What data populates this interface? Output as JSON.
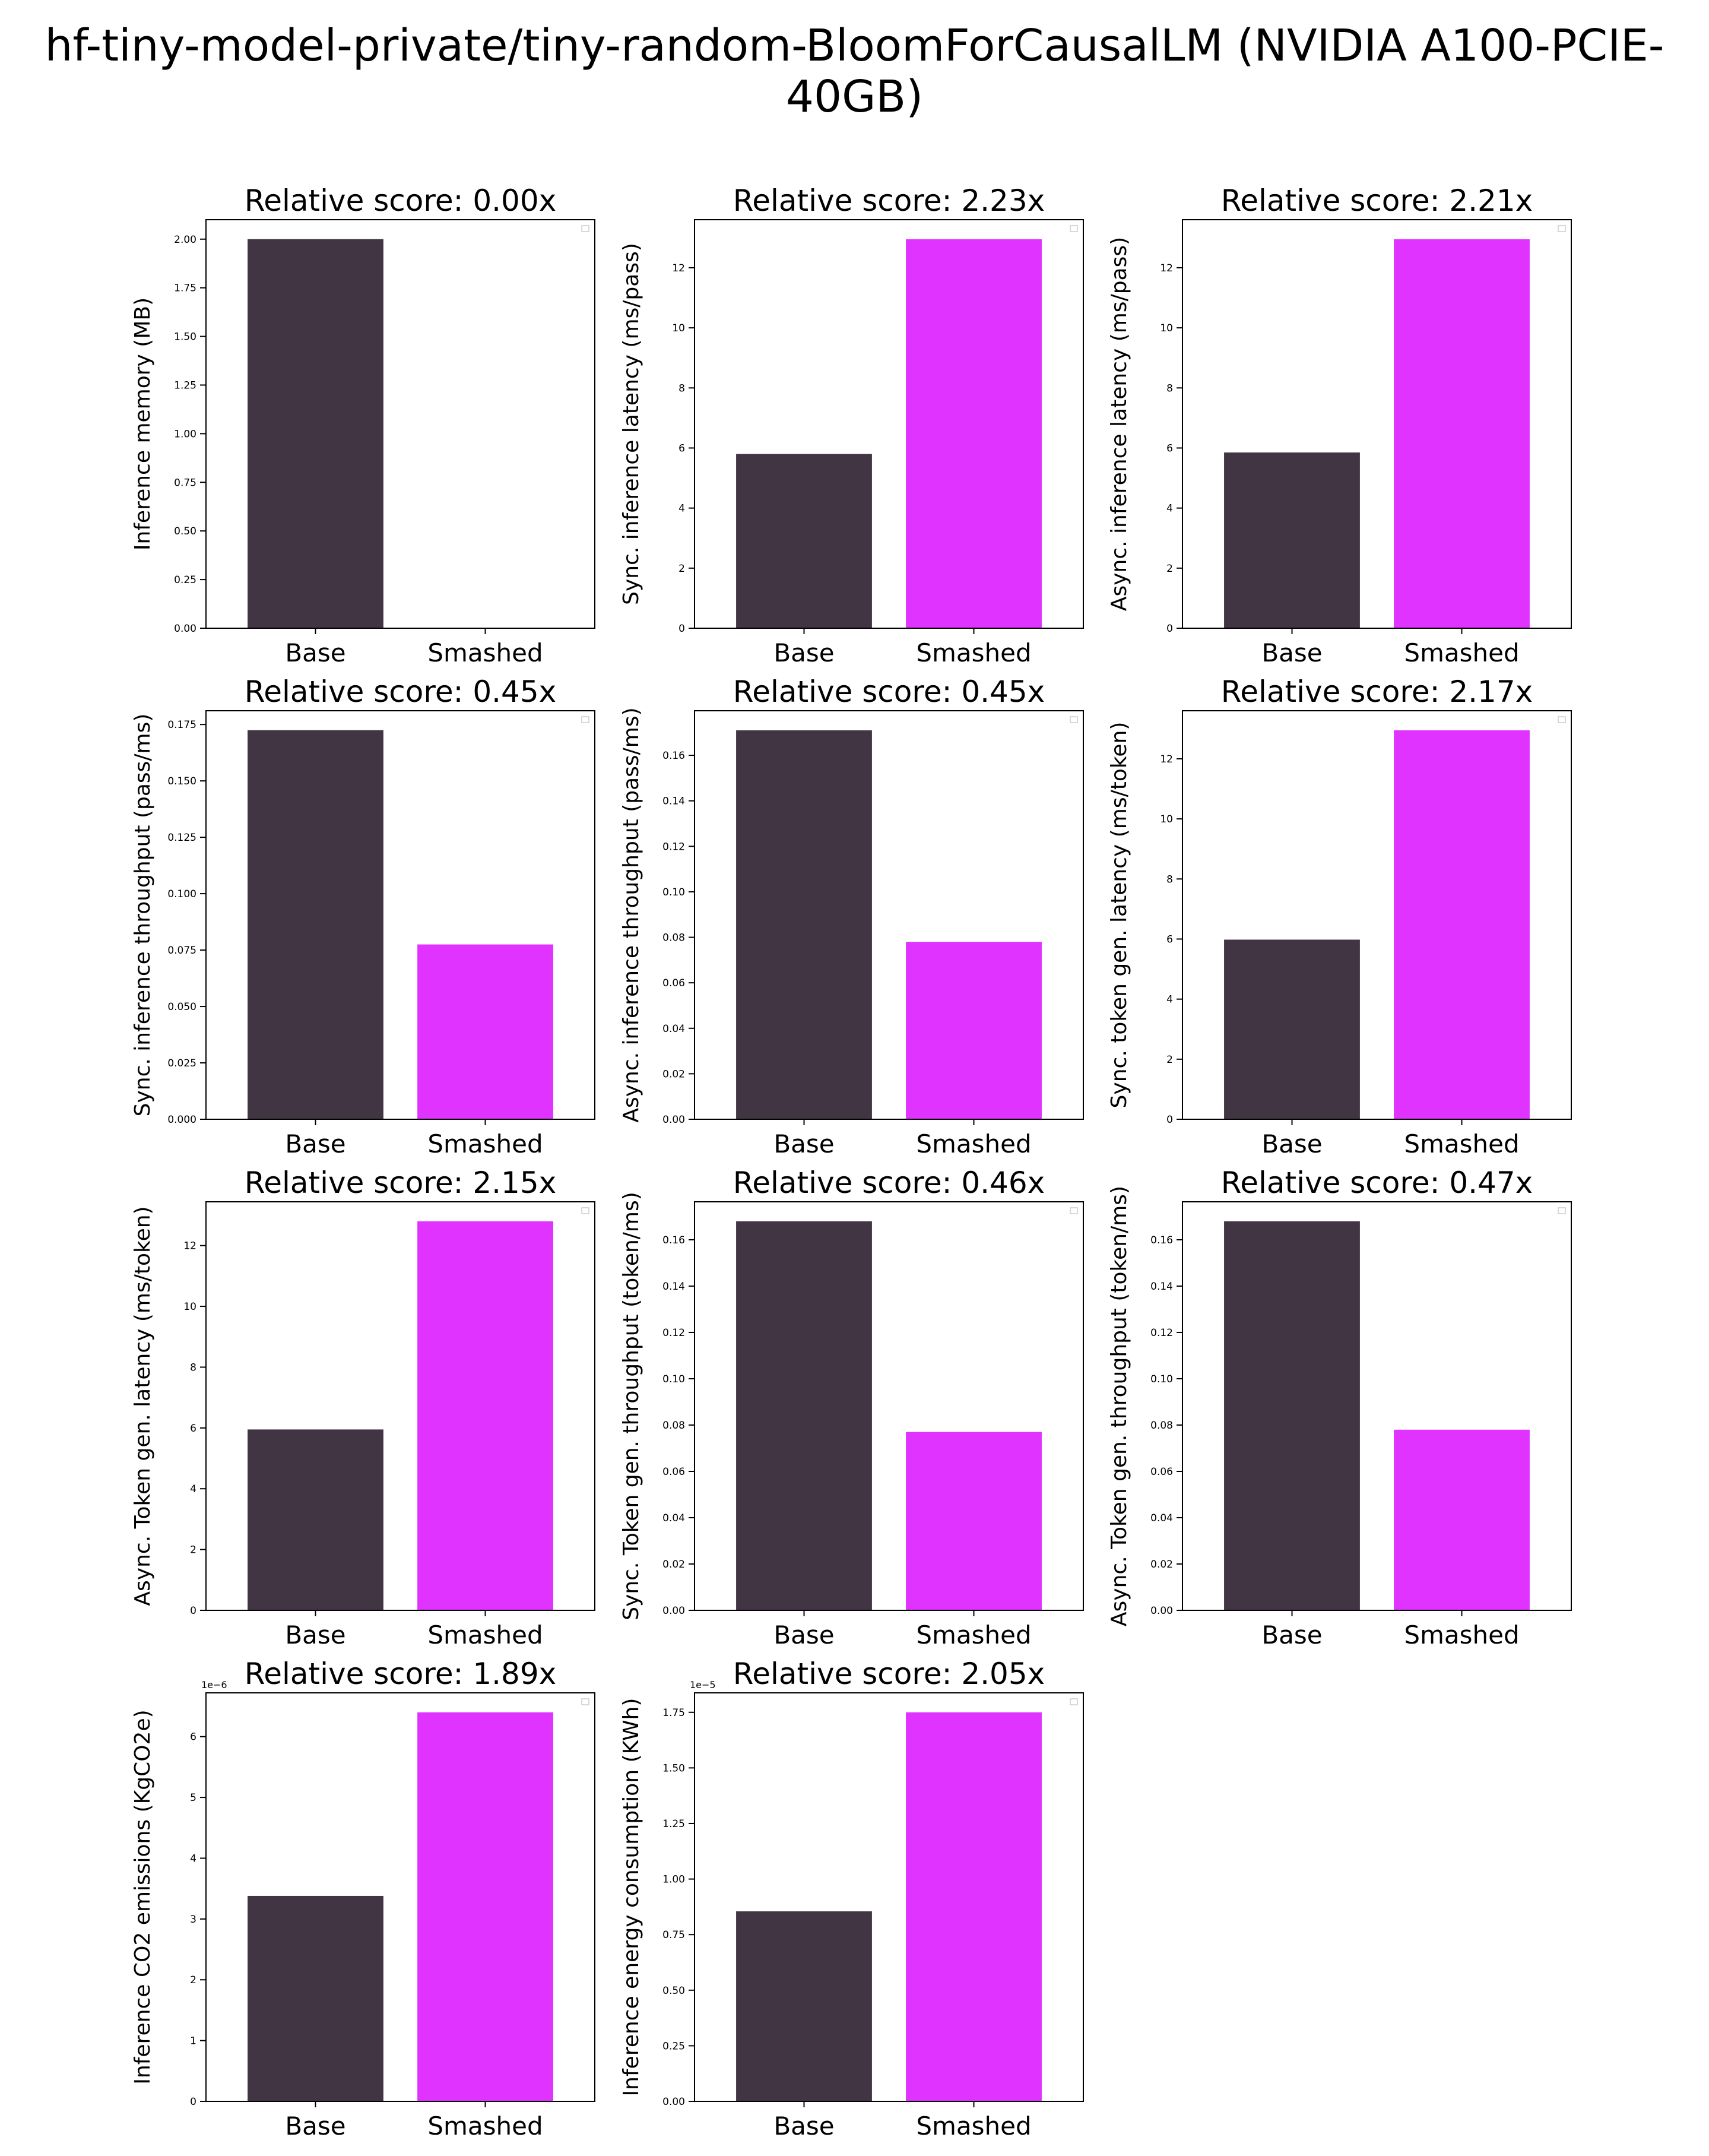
{
  "figure": {
    "suptitle": "hf-tiny-model-private/tiny-random-BloomForCausalLM (NVIDIA A100-PCIE-40GB)"
  },
  "colors": {
    "base": "#413443",
    "smashed": "#e033ff"
  },
  "chart_data": [
    {
      "type": "bar",
      "title": "Relative score: 0.00x",
      "ylabel": "Inference memory (MB)",
      "categories": [
        "Base",
        "Smashed"
      ],
      "values": [
        2.0,
        0.0
      ],
      "ylim": [
        0,
        2.1
      ],
      "yticks": [
        0,
        0.25,
        0.5,
        0.75,
        1.0,
        1.25,
        1.5,
        1.75,
        2.0
      ],
      "tick_decimals": 2,
      "offset_text": ""
    },
    {
      "type": "bar",
      "title": "Relative score: 2.23x",
      "ylabel": "Sync. inference latency (ms/pass)",
      "categories": [
        "Base",
        "Smashed"
      ],
      "values": [
        5.8,
        12.95
      ],
      "ylim": [
        0,
        13.6
      ],
      "yticks": [
        0,
        2,
        4,
        6,
        8,
        10,
        12
      ],
      "tick_decimals": 0,
      "offset_text": ""
    },
    {
      "type": "bar",
      "title": "Relative score: 2.21x",
      "ylabel": "Async. inference latency (ms/pass)",
      "categories": [
        "Base",
        "Smashed"
      ],
      "values": [
        5.85,
        12.95
      ],
      "ylim": [
        0,
        13.6
      ],
      "yticks": [
        0,
        2,
        4,
        6,
        8,
        10,
        12
      ],
      "tick_decimals": 0,
      "offset_text": ""
    },
    {
      "type": "bar",
      "title": "Relative score: 0.45x",
      "ylabel": "Sync. inference throughput (pass/ms)",
      "categories": [
        "Base",
        "Smashed"
      ],
      "values": [
        0.1725,
        0.0775
      ],
      "ylim": [
        0,
        0.1811
      ],
      "yticks": [
        0,
        0.025,
        0.05,
        0.075,
        0.1,
        0.125,
        0.15,
        0.175
      ],
      "tick_decimals": 3,
      "offset_text": ""
    },
    {
      "type": "bar",
      "title": "Relative score: 0.45x",
      "ylabel": "Async. inference throughput (pass/ms)",
      "categories": [
        "Base",
        "Smashed"
      ],
      "values": [
        0.171,
        0.078
      ],
      "ylim": [
        0,
        0.1796
      ],
      "yticks": [
        0,
        0.02,
        0.04,
        0.06,
        0.08,
        0.1,
        0.12,
        0.14,
        0.16
      ],
      "tick_decimals": 2,
      "offset_text": ""
    },
    {
      "type": "bar",
      "title": "Relative score: 2.17x",
      "ylabel": "Sync. token gen. latency (ms/token)",
      "categories": [
        "Base",
        "Smashed"
      ],
      "values": [
        5.98,
        12.95
      ],
      "ylim": [
        0,
        13.6
      ],
      "yticks": [
        0,
        2,
        4,
        6,
        8,
        10,
        12
      ],
      "tick_decimals": 0,
      "offset_text": ""
    },
    {
      "type": "bar",
      "title": "Relative score: 2.15x",
      "ylabel": "Async. Token gen. latency (ms/token)",
      "categories": [
        "Base",
        "Smashed"
      ],
      "values": [
        5.95,
        12.8
      ],
      "ylim": [
        0,
        13.44
      ],
      "yticks": [
        0,
        2,
        4,
        6,
        8,
        10,
        12
      ],
      "tick_decimals": 0,
      "offset_text": ""
    },
    {
      "type": "bar",
      "title": "Relative score: 0.46x",
      "ylabel": "Sync. Token gen. throughput (token/ms)",
      "categories": [
        "Base",
        "Smashed"
      ],
      "values": [
        0.168,
        0.077
      ],
      "ylim": [
        0,
        0.1764
      ],
      "yticks": [
        0,
        0.02,
        0.04,
        0.06,
        0.08,
        0.1,
        0.12,
        0.14,
        0.16
      ],
      "tick_decimals": 2,
      "offset_text": ""
    },
    {
      "type": "bar",
      "title": "Relative score: 0.47x",
      "ylabel": "Async. Token gen. throughput (token/ms)",
      "categories": [
        "Base",
        "Smashed"
      ],
      "values": [
        0.168,
        0.078
      ],
      "ylim": [
        0,
        0.1764
      ],
      "yticks": [
        0,
        0.02,
        0.04,
        0.06,
        0.08,
        0.1,
        0.12,
        0.14,
        0.16
      ],
      "tick_decimals": 2,
      "offset_text": ""
    },
    {
      "type": "bar",
      "title": "Relative score: 1.89x",
      "ylabel": "Inference CO2 emissions (KgCO2e)",
      "categories": [
        "Base",
        "Smashed"
      ],
      "values": [
        3.38,
        6.4
      ],
      "ylim": [
        0,
        6.72
      ],
      "yticks": [
        0,
        1,
        2,
        3,
        4,
        5,
        6
      ],
      "tick_decimals": 0,
      "offset_text": "1e−6"
    },
    {
      "type": "bar",
      "title": "Relative score: 2.05x",
      "ylabel": "Inference energy consumption (KWh)",
      "categories": [
        "Base",
        "Smashed"
      ],
      "values": [
        0.855,
        1.75
      ],
      "ylim": [
        0,
        1.8375
      ],
      "yticks": [
        0,
        0.25,
        0.5,
        0.75,
        1.0,
        1.25,
        1.5,
        1.75
      ],
      "tick_decimals": 2,
      "offset_text": "1e−5"
    }
  ]
}
